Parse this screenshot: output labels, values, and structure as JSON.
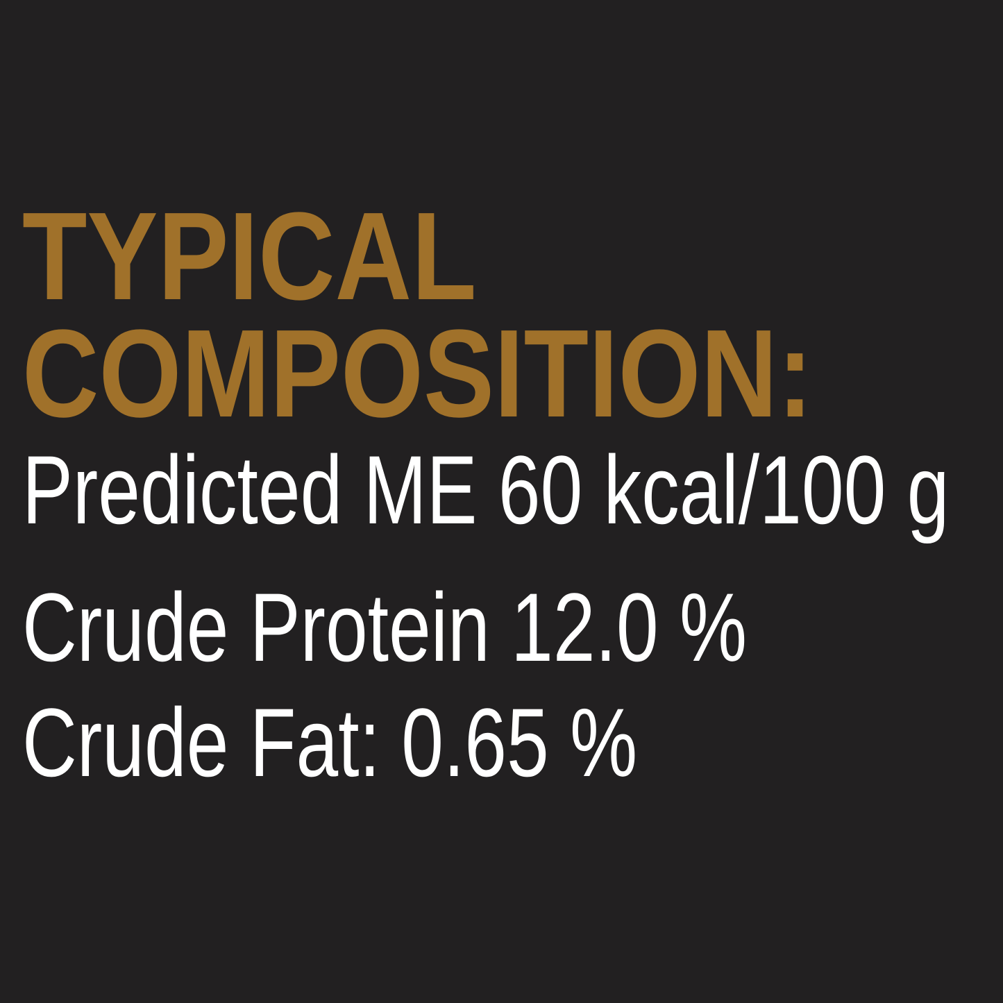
{
  "colors": {
    "background": "#222021",
    "heading": "#A0712A",
    "text": "#FFFFFF"
  },
  "heading": {
    "line1": "TYPICAL",
    "line2": "COMPOSITION:"
  },
  "composition": [
    "Predicted ME 60 kcal/100 g",
    "Crude Protein 12.0 %",
    "Crude Fat: 0.65 %"
  ]
}
